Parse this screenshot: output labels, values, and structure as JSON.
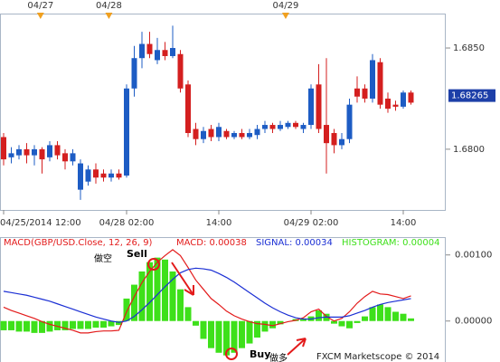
{
  "chart_data": [
    {
      "type": "candlestick",
      "categories": [
        "04/25/2014 12:00",
        null,
        null,
        null,
        null,
        null,
        null,
        null,
        null,
        null,
        null,
        null,
        null,
        null,
        null,
        null,
        "04/28 02:00",
        null,
        null,
        null,
        null,
        null,
        null,
        null,
        null,
        null,
        null,
        null,
        "14:00",
        null,
        null,
        null,
        null,
        null,
        null,
        null,
        null,
        null,
        null,
        null,
        "04/29 02:00",
        null,
        null,
        null,
        null,
        null,
        null,
        null,
        null,
        null,
        null,
        null,
        "14:00",
        null
      ],
      "open": [
        1.6806,
        1.6796,
        1.6797,
        1.68,
        1.6797,
        1.68,
        1.6796,
        1.6802,
        1.6798,
        1.6794,
        1.678,
        1.6784,
        1.679,
        1.6788,
        1.6786,
        1.6788,
        1.6787,
        1.683,
        1.6845,
        1.6852,
        1.6844,
        1.6849,
        1.6846,
        1.6847,
        1.6832,
        1.681,
        1.6805,
        1.681,
        1.6806,
        1.6809,
        1.6806,
        1.6808,
        1.6806,
        1.6807,
        1.681,
        1.6812,
        1.681,
        1.6811,
        1.6813,
        1.681,
        1.6812,
        1.6832,
        1.6812,
        1.6808,
        1.6802,
        1.6805,
        1.683,
        1.683,
        1.6825,
        1.6843,
        1.6825,
        1.6822,
        1.6821,
        1.6828
      ],
      "high": [
        1.6808,
        1.6801,
        1.6802,
        1.6803,
        1.6802,
        1.6801,
        1.6804,
        1.6804,
        1.68,
        1.68,
        1.6795,
        1.6792,
        1.6793,
        1.679,
        1.679,
        1.679,
        1.6832,
        1.6851,
        1.6858,
        1.6858,
        1.6855,
        1.6853,
        1.6861,
        1.6849,
        1.6834,
        1.6813,
        1.6811,
        1.6812,
        1.6813,
        1.681,
        1.6809,
        1.681,
        1.681,
        1.6812,
        1.6814,
        1.6813,
        1.6814,
        1.6814,
        1.6814,
        1.6813,
        1.6832,
        1.6842,
        1.6845,
        1.681,
        1.6808,
        1.6825,
        1.6836,
        1.6832,
        1.6847,
        1.6845,
        1.6828,
        1.6824,
        1.6829,
        1.6829
      ],
      "low": [
        1.6792,
        1.6793,
        1.6795,
        1.6793,
        1.6792,
        1.6788,
        1.6794,
        1.6795,
        1.679,
        1.6792,
        1.6775,
        1.6782,
        1.6783,
        1.6784,
        1.6784,
        1.6785,
        1.6786,
        1.6826,
        1.684,
        1.6845,
        1.6842,
        1.6844,
        1.6845,
        1.6828,
        1.6806,
        1.6802,
        1.6803,
        1.6804,
        1.6804,
        1.6805,
        1.6805,
        1.6805,
        1.6805,
        1.6805,
        1.6808,
        1.6808,
        1.6809,
        1.681,
        1.681,
        1.6808,
        1.681,
        1.6808,
        1.6788,
        1.6798,
        1.68,
        1.6803,
        1.6823,
        1.6823,
        1.6823,
        1.682,
        1.6818,
        1.6819,
        1.682,
        1.6822
      ],
      "close": [
        1.6795,
        1.6798,
        1.68,
        1.6797,
        1.68,
        1.6795,
        1.6802,
        1.6797,
        1.6794,
        1.6798,
        1.6793,
        1.679,
        1.6786,
        1.6786,
        1.6788,
        1.6786,
        1.683,
        1.6845,
        1.6852,
        1.6847,
        1.6849,
        1.6846,
        1.685,
        1.683,
        1.6808,
        1.6805,
        1.6809,
        1.6806,
        1.6811,
        1.6806,
        1.6808,
        1.6806,
        1.6808,
        1.681,
        1.6812,
        1.681,
        1.6812,
        1.6813,
        1.6811,
        1.6812,
        1.683,
        1.681,
        1.6803,
        1.6802,
        1.6805,
        1.6822,
        1.6826,
        1.6825,
        1.6844,
        1.6822,
        1.682,
        1.6821,
        1.6828,
        1.6823
      ],
      "up_color": "#1d5cc4",
      "down_color": "#d41f1f",
      "ylim": [
        1.677,
        1.6867
      ],
      "yticks": [
        {
          "value": 1.68,
          "label": "1.6800"
        },
        {
          "value": 1.685,
          "label": "1.6850"
        }
      ],
      "last_price": 1.68265,
      "date_markers": {
        "labels": [
          "04/27",
          "04/28",
          "04/29"
        ],
        "at": [
          4.8,
          13.7,
          36.7
        ]
      }
    },
    {
      "type": "macd",
      "title": "MACD(GBP/USD.Close, 12, 26, 9)",
      "readouts": [
        "MACD: 0.00038",
        "SIGNAL: 0.00034",
        "HISTOGRAM: 0.00004"
      ],
      "series": [
        {
          "name": "MACD",
          "color": "#e31b1b",
          "kind": "line",
          "values": [
            0.00021,
            0.00016,
            0.00012,
            8e-05,
            4e-05,
            -1e-05,
            -5e-05,
            -8e-05,
            -0.00011,
            -0.00014,
            -0.00018,
            -0.00018,
            -0.00016,
            -0.00015,
            -0.00015,
            -0.00014,
            0.00014,
            0.00037,
            0.00058,
            0.00075,
            0.00089,
            0.00099,
            0.00108,
            0.00099,
            0.00081,
            0.00062,
            0.00048,
            0.00034,
            0.00025,
            0.00015,
            8e-05,
            3e-05,
            -1e-05,
            -4e-05,
            -5e-05,
            -7e-05,
            -4e-05,
            -1e-05,
            1e-05,
            5e-05,
            0.00014,
            0.00018,
            7e-05,
            0.0,
            4e-05,
            0.00014,
            0.00027,
            0.00037,
            0.00045,
            0.00041,
            0.0004,
            0.00037,
            0.00034,
            0.00038
          ]
        },
        {
          "name": "SIGNAL",
          "color": "#1b2fd4",
          "kind": "line",
          "values": [
            0.00045,
            0.00043,
            0.00041,
            0.00039,
            0.00036,
            0.00033,
            0.0003,
            0.00026,
            0.00022,
            0.00018,
            0.00014,
            0.0001,
            6e-05,
            3e-05,
            0.0,
            -2e-05,
            0.0,
            7e-05,
            0.00017,
            0.00028,
            0.0004,
            0.00052,
            0.00063,
            0.00073,
            0.00078,
            0.0008,
            0.00079,
            0.00077,
            0.00072,
            0.00066,
            0.00059,
            0.00051,
            0.00043,
            0.00035,
            0.00027,
            0.0002,
            0.00014,
            9e-05,
            5e-05,
            3e-05,
            3e-05,
            5e-05,
            6e-05,
            6e-05,
            6e-05,
            8e-05,
            0.00012,
            0.00016,
            0.00021,
            0.00025,
            0.00028,
            0.0003,
            0.00032,
            0.00034
          ]
        },
        {
          "name": "HISTOGRAM",
          "color": "#3ee01a",
          "kind": "bar",
          "values": [
            -0.00014,
            -0.00014,
            -0.00016,
            -0.00016,
            -0.00018,
            -0.00018,
            -0.00016,
            -0.00014,
            -0.00014,
            -0.00012,
            -0.00012,
            -0.00012,
            -0.0001,
            -0.0001,
            -8e-05,
            -6e-05,
            0.00034,
            0.00055,
            0.00075,
            0.00089,
            0.00096,
            0.00093,
            0.00075,
            0.00048,
            0.00021,
            -7e-05,
            -0.00027,
            -0.00041,
            -0.00048,
            -0.00052,
            -0.00048,
            -0.00041,
            -0.00034,
            -0.00025,
            -0.00016,
            -0.00011,
            -5e-05,
            0.0,
            3e-05,
            4e-05,
            7e-05,
            0.00016,
            0.00011,
            -4e-05,
            -8e-05,
            -0.00011,
            -3e-05,
            7e-05,
            0.00021,
            0.00025,
            0.00021,
            0.00014,
            0.00011,
            4e-05
          ]
        }
      ],
      "ylim": [
        -0.00062,
        0.00127
      ],
      "yticks": [
        {
          "value": 0.0,
          "label": "0.00000"
        },
        {
          "value": 0.001,
          "label": "0.00100"
        }
      ],
      "annotations": {
        "sell_cn": "做空",
        "sell": "Sell",
        "buy": "Buy",
        "buy_cn": "做多",
        "credit": "FXCM Marketscope © 2014"
      }
    }
  ]
}
